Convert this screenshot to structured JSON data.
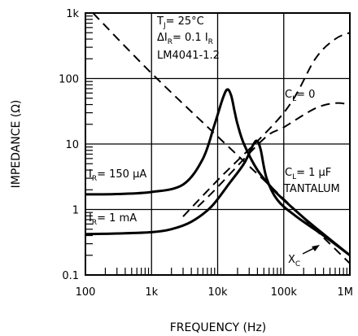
{
  "chart_data": {
    "type": "line",
    "scale": "log-log",
    "xlabel": "FREQUENCY (Hz)",
    "ylabel": "IMPEDANCE (Ω)",
    "xlim": [
      100,
      1000000
    ],
    "ylim": [
      0.1,
      1000
    ],
    "grid": true,
    "x_tick_labels": [
      "100",
      "1k",
      "10k",
      "100k",
      "1M"
    ],
    "y_tick_labels": [
      "0.1",
      "1",
      "10",
      "100",
      "1k"
    ],
    "conditions": {
      "line1_main": "T",
      "line1_sub": "J",
      "line1_rest": "= 25°C",
      "line2_main": "ΔI",
      "line2_sub": "R",
      "line2_rest": "= 0.1 I",
      "line2_sub2": "R",
      "line3": "LM4041-1.2"
    },
    "annotations": {
      "cl0_main": "C",
      "cl0_sub": "L",
      "cl0_rest": "= 0",
      "cl1_main": "C",
      "cl1_sub": "L",
      "cl1_rest": "= 1 μF",
      "tantalum": "TANTALUM",
      "ir150_main": "I",
      "ir150_sub": "R",
      "ir150_rest": "= 150 μA",
      "ir1_main": "I",
      "ir1_sub": "R",
      "ir1_rest": "= 1 mA",
      "xc_main": "X",
      "xc_sub": "C"
    },
    "series": [
      {
        "style": "solid",
        "points": [
          [
            100,
            1.7
          ],
          [
            300,
            1.72
          ],
          [
            1000,
            1.85
          ],
          [
            3000,
            2.4
          ],
          [
            6000,
            6
          ],
          [
            9000,
            20
          ],
          [
            12000,
            50
          ],
          [
            14000,
            68
          ],
          [
            16000,
            55
          ],
          [
            18000,
            32
          ],
          [
            20000,
            20
          ],
          [
            25000,
            10
          ],
          [
            40000,
            4
          ],
          [
            70000,
            2
          ],
          [
            100000,
            1.4
          ],
          [
            200000,
            0.75
          ],
          [
            400000,
            0.42
          ],
          [
            1000000,
            0.2
          ]
        ]
      },
      {
        "style": "solid",
        "points": [
          [
            100,
            0.42
          ],
          [
            300,
            0.43
          ],
          [
            1000,
            0.45
          ],
          [
            2000,
            0.5
          ],
          [
            4000,
            0.65
          ],
          [
            8000,
            1.1
          ],
          [
            15000,
            2.5
          ],
          [
            25000,
            5
          ],
          [
            35000,
            10
          ],
          [
            40000,
            11
          ],
          [
            45000,
            8
          ],
          [
            55000,
            3
          ],
          [
            80000,
            1.4
          ],
          [
            150000,
            0.8
          ],
          [
            400000,
            0.4
          ],
          [
            1000000,
            0.2
          ]
        ]
      },
      {
        "style": "dashed",
        "points": [
          [
            130,
            1000
          ],
          [
            1000,
            120
          ],
          [
            10000,
            13
          ],
          [
            100000,
            1.45
          ],
          [
            1000000,
            0.15
          ]
        ]
      },
      {
        "style": "dashed",
        "points": [
          [
            3000,
            0.78
          ],
          [
            10000,
            2.8
          ],
          [
            100000,
            30
          ],
          [
            300000,
            200
          ],
          [
            600000,
            400
          ],
          [
            1000000,
            500
          ]
        ]
      },
      {
        "style": "dashed",
        "points": [
          [
            5000,
            1.1
          ],
          [
            10000,
            2.2
          ],
          [
            50000,
            12
          ],
          [
            100000,
            18
          ],
          [
            300000,
            35
          ],
          [
            600000,
            42
          ],
          [
            1000000,
            40
          ]
        ]
      }
    ]
  }
}
